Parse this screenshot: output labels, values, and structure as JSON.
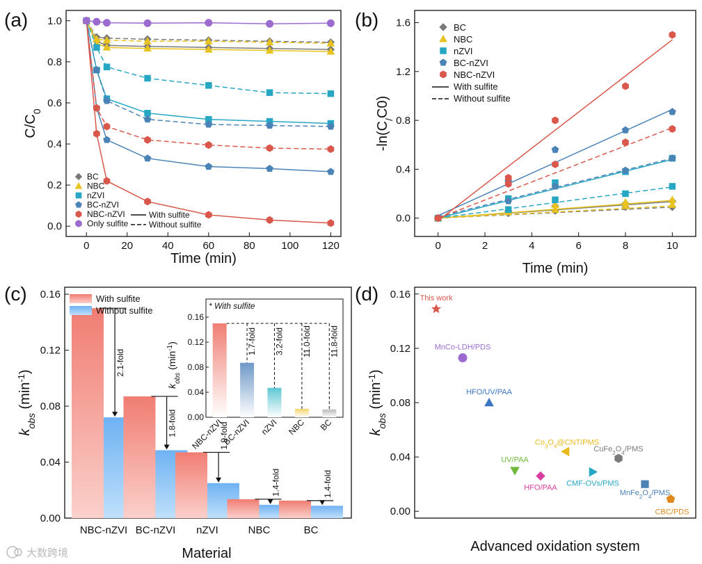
{
  "watermark": "大数跨境",
  "chart_data": [
    {
      "panel": "(a)",
      "type": "line",
      "xlabel": "Time (min)",
      "ylabel": "C/C0",
      "xlim": [
        -10,
        125
      ],
      "ylim": [
        -0.05,
        1.05
      ],
      "xticks": [
        0,
        20,
        40,
        60,
        80,
        100,
        120
      ],
      "yticks": [
        0.0,
        0.2,
        0.4,
        0.6,
        0.8,
        1.0
      ],
      "x": [
        0,
        5,
        10,
        30,
        60,
        90,
        120
      ],
      "legend_position": "bottom-left",
      "legend_with": "With sulfite",
      "legend_without": "Without sulfite",
      "series": [
        {
          "name": "BC",
          "color": "#7a7a7a",
          "marker": "diamond",
          "with": [
            1.0,
            0.9,
            0.88,
            0.875,
            0.87,
            0.865,
            0.86
          ],
          "without": [
            1.0,
            0.92,
            0.915,
            0.91,
            0.905,
            0.9,
            0.895
          ]
        },
        {
          "name": "NBC",
          "color": "#e8c21e",
          "marker": "triangle",
          "with": [
            1.0,
            0.89,
            0.87,
            0.865,
            0.86,
            0.855,
            0.85
          ],
          "without": [
            1.0,
            0.91,
            0.905,
            0.9,
            0.9,
            0.895,
            0.89
          ]
        },
        {
          "name": "nZVI",
          "color": "#27a7c4",
          "marker": "square",
          "with": [
            1.0,
            0.76,
            0.62,
            0.55,
            0.52,
            0.51,
            0.5
          ],
          "without": [
            1.0,
            0.87,
            0.775,
            0.72,
            0.685,
            0.65,
            0.645
          ]
        },
        {
          "name": "BC-nZVI",
          "color": "#4b83b6",
          "marker": "pentagon",
          "with": [
            1.0,
            0.575,
            0.42,
            0.33,
            0.29,
            0.28,
            0.265
          ],
          "without": [
            1.0,
            0.76,
            0.61,
            0.52,
            0.495,
            0.49,
            0.485
          ]
        },
        {
          "name": "NBC-nZVI",
          "color": "#d9574b",
          "marker": "hexagon",
          "with": [
            1.0,
            0.45,
            0.22,
            0.12,
            0.055,
            0.03,
            0.015
          ],
          "without": [
            1.0,
            0.575,
            0.485,
            0.42,
            0.395,
            0.38,
            0.375
          ]
        },
        {
          "name": "Only sulfite",
          "color": "#9b6bd0",
          "marker": "circle",
          "with": [
            1.0,
            0.995,
            0.99,
            0.988,
            0.99,
            0.985,
            0.988
          ],
          "without": null
        }
      ]
    },
    {
      "panel": "(b)",
      "type": "scatter",
      "xlabel": "Time (min)",
      "ylabel": "-ln(C/C0)",
      "xlim": [
        -1,
        11
      ],
      "ylim": [
        -0.15,
        1.7
      ],
      "xticks": [
        0,
        2,
        4,
        6,
        8,
        10
      ],
      "yticks": [
        0.0,
        0.4,
        0.8,
        1.2,
        1.6
      ],
      "x": [
        0,
        3,
        5,
        8,
        10
      ],
      "legend_position": "top-left",
      "legend_with": "With sulfite",
      "legend_without": "Without sulfite",
      "series": [
        {
          "name": "BC",
          "color": "#7a7a7a",
          "marker": "diamond",
          "with": [
            0,
            0.06,
            0.1,
            0.12,
            0.14
          ],
          "without": [
            0,
            0.04,
            0.06,
            0.09,
            0.09
          ],
          "fit_with": [
            0.0,
            0.135
          ],
          "fit_without": [
            0.0,
            0.09
          ]
        },
        {
          "name": "NBC",
          "color": "#e8c21e",
          "marker": "triangle",
          "with": [
            0,
            0.07,
            0.11,
            0.13,
            0.15
          ],
          "without": [
            0,
            0.05,
            0.07,
            0.1,
            0.11
          ],
          "fit_with": [
            0.0,
            0.145
          ],
          "fit_without": [
            0.0,
            0.1
          ]
        },
        {
          "name": "nZVI",
          "color": "#27a7c4",
          "marker": "square",
          "with": [
            0,
            0.16,
            0.29,
            0.38,
            0.49
          ],
          "without": [
            0,
            0.07,
            0.15,
            0.2,
            0.26
          ],
          "fit_with": [
            0.0,
            0.48
          ],
          "fit_without": [
            0.0,
            0.255
          ]
        },
        {
          "name": "BC-nZVI",
          "color": "#4b83b6",
          "marker": "pentagon",
          "with": [
            0,
            0.3,
            0.56,
            0.72,
            0.87
          ],
          "without": [
            0,
            0.14,
            0.26,
            0.39,
            0.49
          ],
          "fit_with": [
            0.02,
            0.89
          ],
          "fit_without": [
            0.01,
            0.49
          ]
        },
        {
          "name": "NBC-nZVI",
          "color": "#d9574b",
          "marker": "hexagon",
          "with": [
            0,
            0.33,
            0.8,
            1.08,
            1.5
          ],
          "without": [
            0,
            0.28,
            0.44,
            0.62,
            0.73
          ],
          "fit_with": [
            -0.02,
            1.46
          ],
          "fit_without": [
            0.0,
            0.74
          ]
        }
      ]
    },
    {
      "panel": "(c)",
      "type": "bar",
      "xlabel": "Material",
      "ylabel": "kobs (min-1)",
      "ylim": [
        0,
        0.165
      ],
      "yticks": [
        0.0,
        0.04,
        0.08,
        0.12,
        0.16
      ],
      "categories": [
        "NBC-nZVI",
        "BC-nZVI",
        "nZVI",
        "NBC",
        "BC"
      ],
      "series": [
        {
          "name": "With sulfite",
          "color": "#ef8a80",
          "values": [
            0.15,
            0.087,
            0.047,
            0.0135,
            0.0125
          ]
        },
        {
          "name": "Without sulfite",
          "color": "#79b8f2",
          "values": [
            0.072,
            0.0485,
            0.025,
            0.0095,
            0.0088
          ]
        }
      ],
      "fold_labels": [
        "2.1-fold",
        "1.8-fold",
        "1.9-fold",
        "1.4-fold",
        "1.4-fold"
      ],
      "legend_position": "top-left",
      "inset": {
        "title": "* With sulfite",
        "ylabel": "kobs (min-1)",
        "ylim": [
          0,
          0.16
        ],
        "yticks": [
          0.0,
          0.04,
          0.08,
          0.12,
          0.16
        ],
        "categories": [
          "NBC-nZVI",
          "BC-nZVI",
          "nZVI",
          "NBC",
          "BC"
        ],
        "values": [
          0.15,
          0.087,
          0.047,
          0.0135,
          0.0125
        ],
        "colors": [
          "#ef7f74",
          "#6f98c8",
          "#5ec7d3",
          "#f5d56a",
          "#b9b9b9"
        ],
        "fold_labels": [
          "1.7-fold",
          "3.2-fold",
          "11.0-fold",
          "11.8-fold"
        ]
      }
    },
    {
      "panel": "(d)",
      "type": "scatter",
      "xlabel": "Advanced oxidation system",
      "ylabel": "kobs (min-1)",
      "ylim": [
        -0.005,
        0.165
      ],
      "yticks": [
        0.0,
        0.04,
        0.08,
        0.12,
        0.16
      ],
      "points": [
        {
          "label": "This work",
          "y": 0.149,
          "color": "#d9574b",
          "marker": "star"
        },
        {
          "label": "MnCo-LDH/PDS",
          "y": 0.113,
          "color": "#9b6bd0",
          "marker": "circle"
        },
        {
          "label": "HFO/UV/PAA",
          "y": 0.08,
          "color": "#3b76c3",
          "marker": "triangle"
        },
        {
          "label": "Co3O4@CNT/PMS",
          "y": 0.044,
          "color": "#e8b81c",
          "marker": "triangle-left"
        },
        {
          "label": "CuFe2O4/PMS",
          "y": 0.039,
          "color": "#7a7a7a",
          "marker": "hexagon"
        },
        {
          "label": "UV/PAA",
          "y": 0.03,
          "color": "#6fb83c",
          "marker": "triangle-down"
        },
        {
          "label": "CMF-OVs/PMS",
          "y": 0.029,
          "color": "#27a7c4",
          "marker": "triangle-right"
        },
        {
          "label": "HFO/PAA",
          "y": 0.026,
          "color": "#d63fa0",
          "marker": "diamond"
        },
        {
          "label": "MnFe2O4/PMS",
          "y": 0.02,
          "color": "#4b83b6",
          "marker": "square"
        },
        {
          "label": "CBC/PDS",
          "y": 0.009,
          "color": "#e08a1e",
          "marker": "pentagon"
        }
      ]
    }
  ]
}
